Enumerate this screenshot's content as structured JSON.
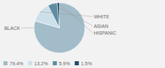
{
  "chart_data": {
    "type": "pie",
    "categories": [
      "BLACK",
      "WHITE",
      "ASIAN",
      "HISPANIC"
    ],
    "values": [
      79.4,
      13.2,
      5.9,
      1.5
    ],
    "value_labels": [
      "79.4%",
      "13.2%",
      "5.9%",
      "1.5%"
    ],
    "colors": [
      "#a2bcc9",
      "#cde0ea",
      "#5c8da3",
      "#1e4b63"
    ],
    "legend": "lower left"
  }
}
